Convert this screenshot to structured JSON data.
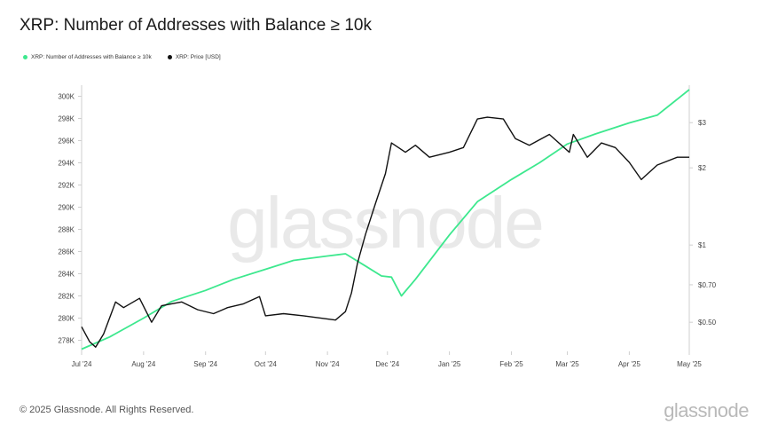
{
  "title": "XRP: Number of Addresses with Balance ≥ 10k",
  "footer": "© 2025 Glassnode. All Rights Reserved.",
  "brand": "glassnode",
  "watermark": "glassnode",
  "colors": {
    "addresses": "#3de88e",
    "price": "#111111"
  },
  "chart_data": {
    "type": "line",
    "title": "XRP: Number of Addresses with Balance ≥ 10k",
    "legend_position": "top-left",
    "grid": false,
    "x_tick_labels": [
      "Jul '24",
      "Aug '24",
      "Sep '24",
      "Oct '24",
      "Nov '24",
      "Dec '24",
      "Jan '25",
      "Feb '25",
      "Mar '25",
      "Apr '25",
      "May '25"
    ],
    "x_tick_dates": [
      "2024-07-01",
      "2024-08-01",
      "2024-09-01",
      "2024-10-01",
      "2024-11-01",
      "2024-12-01",
      "2025-01-01",
      "2025-02-01",
      "2025-03-01",
      "2025-04-01",
      "2025-05-01"
    ],
    "xlim": [
      "2024-07-01",
      "2025-05-01"
    ],
    "y_left": {
      "scale": "linear",
      "ylim": [
        277000,
        301000
      ],
      "ticks": [
        278000,
        280000,
        282000,
        284000,
        286000,
        288000,
        290000,
        292000,
        294000,
        296000,
        298000,
        300000
      ],
      "tick_labels": [
        "278K",
        "280K",
        "282K",
        "284K",
        "286K",
        "288K",
        "290K",
        "292K",
        "294K",
        "296K",
        "298K",
        "300K"
      ]
    },
    "y_right": {
      "scale": "log",
      "ticks": [
        0.5,
        0.7,
        1,
        2,
        3
      ],
      "tick_labels": [
        "$0.50",
        "$0.70",
        "$1",
        "$2",
        "$3"
      ]
    },
    "series": [
      {
        "name": "XRP: Number of Addresses with Balance ≥ 10k",
        "axis": "left",
        "x": [
          "2024-07-01",
          "2024-07-15",
          "2024-08-01",
          "2024-08-15",
          "2024-09-01",
          "2024-09-15",
          "2024-10-01",
          "2024-10-15",
          "2024-11-01",
          "2024-11-10",
          "2024-11-20",
          "2024-11-28",
          "2024-12-03",
          "2024-12-08",
          "2024-12-15",
          "2025-01-01",
          "2025-01-15",
          "2025-02-01",
          "2025-02-15",
          "2025-03-01",
          "2025-03-15",
          "2025-04-01",
          "2025-04-15",
          "2025-05-01"
        ],
        "values": [
          277200,
          278300,
          280000,
          281500,
          282500,
          283500,
          284400,
          285200,
          285600,
          285800,
          284700,
          283800,
          283700,
          282000,
          283500,
          287500,
          290500,
          292500,
          294000,
          295700,
          296600,
          297600,
          298300,
          300600
        ]
      },
      {
        "name": "XRP: Price [USD]",
        "axis": "right",
        "x": [
          "2024-07-01",
          "2024-07-05",
          "2024-07-08",
          "2024-07-12",
          "2024-07-18",
          "2024-07-22",
          "2024-07-30",
          "2024-08-05",
          "2024-08-10",
          "2024-08-20",
          "2024-08-28",
          "2024-09-05",
          "2024-09-12",
          "2024-09-20",
          "2024-09-28",
          "2024-10-01",
          "2024-10-10",
          "2024-10-20",
          "2024-10-28",
          "2024-11-05",
          "2024-11-10",
          "2024-11-13",
          "2024-11-16",
          "2024-11-20",
          "2024-11-25",
          "2024-11-30",
          "2024-12-03",
          "2024-12-10",
          "2024-12-15",
          "2024-12-22",
          "2025-01-01",
          "2025-01-08",
          "2025-01-15",
          "2025-01-20",
          "2025-01-28",
          "2025-02-03",
          "2025-02-10",
          "2025-02-20",
          "2025-03-02",
          "2025-03-04",
          "2025-03-11",
          "2025-03-18",
          "2025-03-25",
          "2025-04-01",
          "2025-04-07",
          "2025-04-15",
          "2025-04-25",
          "2025-05-01"
        ],
        "values": [
          0.48,
          0.42,
          0.4,
          0.45,
          0.6,
          0.57,
          0.62,
          0.5,
          0.58,
          0.6,
          0.56,
          0.54,
          0.57,
          0.59,
          0.63,
          0.53,
          0.54,
          0.53,
          0.52,
          0.51,
          0.55,
          0.65,
          0.85,
          1.1,
          1.45,
          1.9,
          2.5,
          2.3,
          2.45,
          2.2,
          2.3,
          2.4,
          3.1,
          3.15,
          3.1,
          2.6,
          2.45,
          2.7,
          2.3,
          2.7,
          2.2,
          2.5,
          2.4,
          2.1,
          1.8,
          2.05,
          2.2,
          2.2
        ]
      }
    ]
  }
}
